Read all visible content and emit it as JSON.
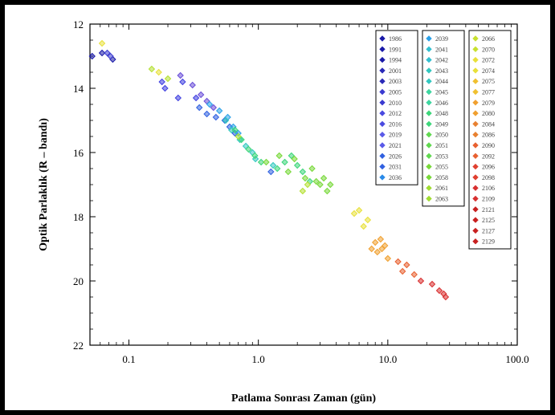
{
  "chart_data": {
    "type": "scatter",
    "xlabel": "Patlama Sonrası Zaman (gün)",
    "ylabel": "Optik Parlaklık (R – bandı)",
    "xscale": "log",
    "xlim": [
      0.05,
      100.0
    ],
    "ylim": [
      22,
      12
    ],
    "y_inverted": true,
    "x_ticks": [
      "0.1",
      "1.0",
      "10.0",
      "100.0"
    ],
    "y_ticks": [
      "12",
      "14",
      "16",
      "18",
      "20",
      "22"
    ],
    "legend_placement": "top-right",
    "legend_columns": [
      [
        "1986",
        "1991",
        "1994",
        "2001",
        "2003",
        "2005",
        "2010",
        "2012",
        "2016",
        "2019",
        "2021",
        "2026",
        "2031",
        "2036"
      ],
      [
        "2039",
        "2041",
        "2042",
        "2043",
        "2044",
        "2045",
        "2046",
        "2048",
        "2049",
        "2050",
        "2051",
        "2053",
        "2055",
        "2058",
        "2061",
        "2063"
      ],
      [
        "2066",
        "2070",
        "2072",
        "2074",
        "2075",
        "2077",
        "2079",
        "2080",
        "2084",
        "2086",
        "2090",
        "2092",
        "2096",
        "2098",
        "2106",
        "2109",
        "2121",
        "2125",
        "2127",
        "2129"
      ]
    ],
    "series": [
      {
        "color": "#1a1aa8",
        "x": [
          0.052,
          0.062,
          0.075
        ],
        "y": [
          13.0,
          12.9,
          13.1
        ]
      },
      {
        "color": "#3a3ad0",
        "x": [
          0.068,
          0.072
        ],
        "y": [
          12.9,
          13.0
        ]
      },
      {
        "color": "#4040e0",
        "x": [
          0.18,
          0.19,
          0.24,
          0.26,
          0.33
        ],
        "y": [
          13.8,
          14.0,
          14.3,
          13.8,
          14.3
        ]
      },
      {
        "color": "#6a4fd8",
        "x": [
          0.25,
          0.31,
          0.36,
          0.4,
          0.45
        ],
        "y": [
          13.6,
          13.9,
          14.2,
          14.4,
          14.6
        ]
      },
      {
        "color": "#3060e0",
        "x": [
          0.35,
          0.4,
          0.47,
          0.55,
          0.6,
          0.66,
          1.25
        ],
        "y": [
          14.6,
          14.8,
          14.9,
          15.0,
          15.2,
          15.4,
          16.6
        ]
      },
      {
        "color": "#2aa0e8",
        "x": [
          0.42,
          0.5,
          0.58,
          0.64,
          0.7
        ],
        "y": [
          14.5,
          14.7,
          14.9,
          15.2,
          15.4
        ]
      },
      {
        "color": "#33c8c0",
        "x": [
          0.56,
          0.62,
          0.72,
          0.8,
          0.9,
          0.95,
          1.3
        ],
        "y": [
          15.0,
          15.3,
          15.6,
          15.8,
          16.0,
          16.2,
          16.4
        ]
      },
      {
        "color": "#3dd67a",
        "x": [
          0.66,
          0.74,
          0.84,
          0.94,
          1.05,
          1.4,
          1.6,
          1.8,
          2.0,
          2.2,
          2.5
        ],
        "y": [
          15.3,
          15.6,
          15.9,
          16.1,
          16.3,
          16.5,
          16.3,
          16.1,
          16.4,
          16.6,
          16.9
        ]
      },
      {
        "color": "#78d83a",
        "x": [
          1.15,
          1.45,
          1.7,
          1.9,
          2.3,
          2.6,
          2.8,
          3.0,
          3.2,
          3.4,
          3.6
        ],
        "y": [
          16.3,
          16.1,
          16.6,
          16.2,
          16.8,
          16.5,
          16.9,
          17.0,
          16.8,
          17.2,
          17.0
        ]
      },
      {
        "color": "#b4e032",
        "x": [
          0.15,
          0.2,
          0.7,
          2.2,
          2.4
        ],
        "y": [
          13.4,
          13.7,
          15.5,
          17.2,
          17.0
        ]
      },
      {
        "color": "#e8e03a",
        "x": [
          0.062,
          0.17,
          5.5,
          6.0,
          6.5,
          7.0
        ],
        "y": [
          12.6,
          13.5,
          17.9,
          17.8,
          18.3,
          18.1
        ]
      },
      {
        "color": "#f0a030",
        "x": [
          7.5,
          8.0,
          8.3,
          8.8,
          9.0,
          9.5,
          10.0
        ],
        "y": [
          19.0,
          18.8,
          19.1,
          18.7,
          19.0,
          18.9,
          19.3
        ]
      },
      {
        "color": "#e86030",
        "x": [
          12.0,
          13.0,
          14.0,
          16.0
        ],
        "y": [
          19.4,
          19.7,
          19.5,
          19.8
        ]
      },
      {
        "color": "#d83030",
        "x": [
          18.0,
          22.0,
          25.0,
          27.0,
          28.0
        ],
        "y": [
          20.0,
          20.1,
          20.3,
          20.4,
          20.5
        ]
      }
    ]
  }
}
